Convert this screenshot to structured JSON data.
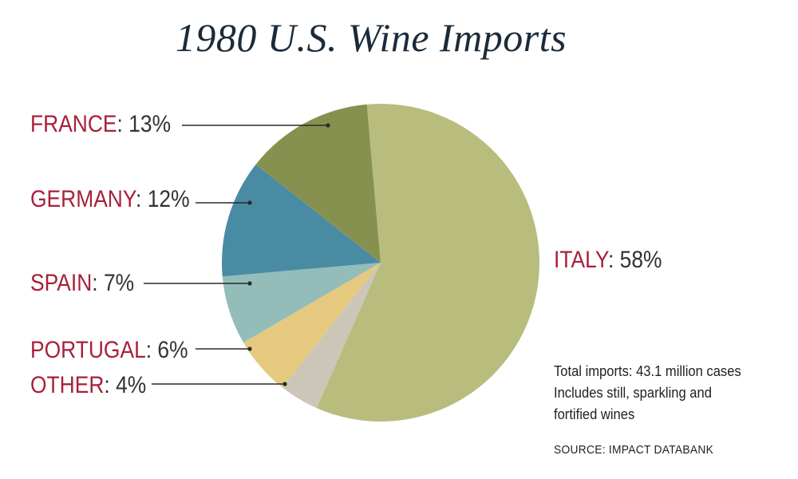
{
  "chart_data": {
    "type": "pie",
    "title": "1980 U.S. Wine Imports",
    "slices": [
      {
        "label": "ITALY",
        "value": 58,
        "value_text": "58%",
        "color": "#b8bd7d"
      },
      {
        "label": "OTHER",
        "value": 4,
        "value_text": "4%",
        "color": "#cbc6b8"
      },
      {
        "label": "PORTUGAL",
        "value": 6,
        "value_text": "6%",
        "color": "#e4c97f"
      },
      {
        "label": "SPAIN",
        "value": 7,
        "value_text": "7%",
        "color": "#94bdb9"
      },
      {
        "label": "GERMANY",
        "value": 12,
        "value_text": "12%",
        "color": "#4a8ba4"
      },
      {
        "label": "FRANCE",
        "value": 13,
        "value_text": "13%",
        "color": "#87914f"
      }
    ],
    "notes": [
      "Total imports: 43.1 million cases",
      "Includes still, sparkling and",
      "fortified wines"
    ],
    "source": "SOURCE: IMPACT DATABANK"
  },
  "colors": {
    "label_name": "#a8203a",
    "label_value": "#333333",
    "title": "#1b2b3a"
  }
}
